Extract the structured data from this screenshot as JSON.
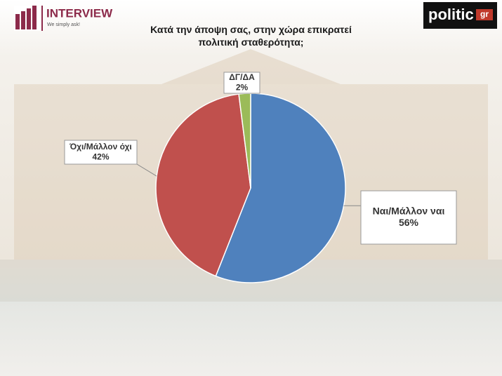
{
  "logos": {
    "left": "INTERVIEW",
    "left_tagline": "We simply ask!",
    "right": "politic",
    "right_suffix": "gr"
  },
  "chart_data": {
    "type": "pie",
    "title": "Κατά την άποψη σας, στην χώρα επικρατεί πολιτική σταθερότητα;",
    "categories": [
      "Ναι/Μάλλον ναι",
      "Όχι/Μάλλον όχι",
      "ΔΓ/ΔΑ"
    ],
    "values": [
      56,
      42,
      2
    ],
    "value_labels": [
      "56%",
      "42%",
      "2%"
    ],
    "colors": [
      "#4f81bd",
      "#c0504d",
      "#9bbb59"
    ]
  }
}
